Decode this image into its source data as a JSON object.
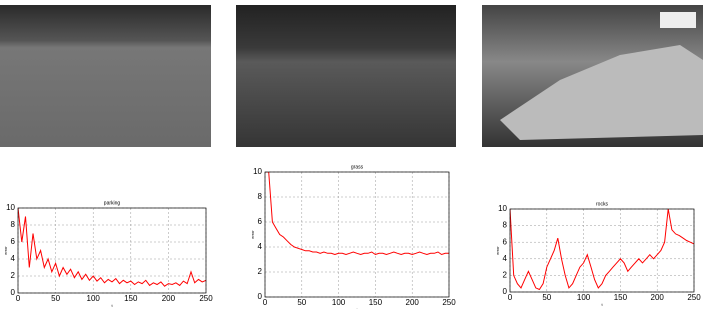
{
  "chart_data": [
    {
      "type": "line",
      "title": "parking",
      "xlabel": "t",
      "ylabel": "error",
      "color": "#ff0000",
      "x": [
        0,
        5,
        10,
        15,
        20,
        25,
        30,
        35,
        40,
        45,
        50,
        55,
        60,
        65,
        70,
        75,
        80,
        85,
        90,
        95,
        100,
        105,
        110,
        115,
        120,
        125,
        130,
        135,
        140,
        145,
        150,
        155,
        160,
        165,
        170,
        175,
        180,
        185,
        190,
        195,
        200,
        205,
        210,
        215,
        220,
        225,
        230,
        235,
        240,
        245,
        250
      ],
      "values": [
        10,
        6,
        9,
        3,
        7,
        4,
        5,
        3,
        4,
        2.5,
        3.5,
        2,
        3,
        2.2,
        2.8,
        1.8,
        2.5,
        1.6,
        2.2,
        1.5,
        2,
        1.4,
        1.8,
        1.2,
        1.6,
        1.3,
        1.7,
        1.1,
        1.5,
        1.2,
        1.4,
        1.0,
        1.3,
        1.1,
        1.5,
        0.9,
        1.2,
        1.0,
        1.3,
        0.8,
        1.1,
        1.0,
        1.2,
        0.9,
        1.4,
        1.1,
        2.5,
        1.2,
        1.6,
        1.3,
        1.5
      ],
      "xlim": [
        0,
        250
      ],
      "xticks": [
        0,
        50,
        100,
        150,
        200,
        250
      ],
      "ylim": [
        0,
        10
      ],
      "yticks": [
        0,
        2,
        4,
        6,
        8,
        10
      ],
      "grid": true
    },
    {
      "type": "line",
      "title": "grass",
      "xlabel": "t",
      "ylabel": "error",
      "color": "#ff0000",
      "x": [
        0,
        5,
        10,
        15,
        20,
        25,
        30,
        35,
        40,
        45,
        50,
        55,
        60,
        65,
        70,
        75,
        80,
        85,
        90,
        95,
        100,
        105,
        110,
        115,
        120,
        125,
        130,
        135,
        140,
        145,
        150,
        155,
        160,
        165,
        170,
        175,
        180,
        185,
        190,
        195,
        200,
        205,
        210,
        215,
        220,
        225,
        230,
        235,
        240,
        245,
        250
      ],
      "values": [
        10,
        10,
        6,
        5.5,
        5,
        4.8,
        4.5,
        4.2,
        4,
        3.9,
        3.8,
        3.7,
        3.7,
        3.6,
        3.6,
        3.5,
        3.6,
        3.5,
        3.5,
        3.4,
        3.5,
        3.5,
        3.4,
        3.5,
        3.6,
        3.5,
        3.4,
        3.5,
        3.5,
        3.6,
        3.4,
        3.5,
        3.5,
        3.4,
        3.5,
        3.6,
        3.5,
        3.4,
        3.5,
        3.5,
        3.4,
        3.5,
        3.6,
        3.5,
        3.4,
        3.5,
        3.5,
        3.6,
        3.4,
        3.5,
        3.5
      ],
      "xlim": [
        0,
        250
      ],
      "xticks": [
        0,
        50,
        100,
        150,
        200,
        250
      ],
      "ylim": [
        0,
        10
      ],
      "yticks": [
        0,
        2,
        4,
        6,
        8,
        10
      ],
      "grid": true
    },
    {
      "type": "line",
      "title": "rocks",
      "xlabel": "t",
      "ylabel": "error",
      "color": "#ff0000",
      "x": [
        0,
        5,
        10,
        15,
        20,
        25,
        30,
        35,
        40,
        45,
        50,
        55,
        60,
        65,
        70,
        75,
        80,
        85,
        90,
        95,
        100,
        105,
        110,
        115,
        120,
        125,
        130,
        135,
        140,
        145,
        150,
        155,
        160,
        165,
        170,
        175,
        180,
        185,
        190,
        195,
        200,
        205,
        210,
        215,
        220,
        225,
        230,
        235,
        240,
        245,
        250
      ],
      "values": [
        10,
        2,
        1,
        0.5,
        1.5,
        2.5,
        1.5,
        0.5,
        0.3,
        1,
        3,
        4,
        5,
        6.5,
        4,
        2,
        0.5,
        1,
        2,
        3,
        3.5,
        4.5,
        3,
        1.5,
        0.5,
        1,
        2,
        2.5,
        3,
        3.5,
        4,
        3.5,
        2.5,
        3,
        3.5,
        4,
        3.5,
        4,
        4.5,
        4,
        4.5,
        5,
        6,
        10,
        7.5,
        7,
        6.8,
        6.5,
        6.2,
        6,
        5.8
      ],
      "xlim": [
        0,
        250
      ],
      "xticks": [
        0,
        50,
        100,
        150,
        200,
        250
      ],
      "ylim": [
        0,
        10
      ],
      "yticks": [
        0,
        2,
        4,
        6,
        8,
        10
      ],
      "grid": true
    }
  ]
}
